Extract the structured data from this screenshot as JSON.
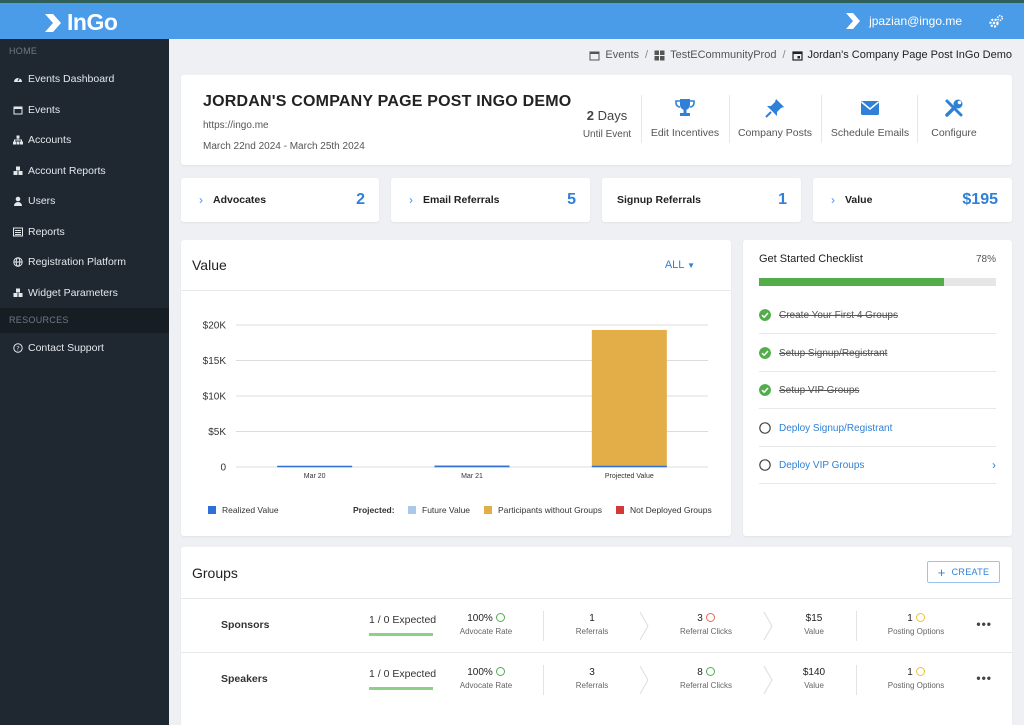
{
  "app": {
    "name": "InGo",
    "user_email": "jpazian@ingo.me"
  },
  "colors": {
    "topbar": "#4a9be8",
    "sidebar": "#1f2830",
    "accent": "#2f80d6",
    "success": "#52ad4a",
    "realized": "#2f6fd6",
    "future": "#a9c8ea",
    "participants": "#e3ad47",
    "not_deployed": "#d23a3a"
  },
  "sidebar": {
    "section_home": "HOME",
    "section_resources": "RESOURCES",
    "items": [
      {
        "label": "Events Dashboard",
        "icon": "dashboard-icon"
      },
      {
        "label": "Events",
        "icon": "calendar-icon"
      },
      {
        "label": "Accounts",
        "icon": "sitemap-icon"
      },
      {
        "label": "Account Reports",
        "icon": "cubes-icon"
      },
      {
        "label": "Users",
        "icon": "user-icon"
      },
      {
        "label": "Reports",
        "icon": "list-icon"
      },
      {
        "label": "Registration Platform",
        "icon": "globe-icon"
      },
      {
        "label": "Widget Parameters",
        "icon": "cubes-icon"
      }
    ],
    "resources": [
      {
        "label": "Contact Support",
        "icon": "question-circle-icon"
      }
    ]
  },
  "breadcrumb": {
    "events": "Events",
    "community": "TestECommunityProd",
    "current": "Jordan's Company Page Post InGo Demo"
  },
  "event": {
    "title": "JORDAN'S COMPANY PAGE POST INGO DEMO",
    "url": "https://ingo.me",
    "dates": "March 22nd 2024 - March 25th 2024",
    "days_num": "2",
    "days_word": "Days",
    "days_label": "Until Event",
    "actions": [
      {
        "label": "Edit Incentives",
        "icon": "trophy-icon"
      },
      {
        "label": "Company Posts",
        "icon": "pin-icon"
      },
      {
        "label": "Schedule Emails",
        "icon": "envelope-icon"
      },
      {
        "label": "Configure",
        "icon": "wrench-icon"
      }
    ]
  },
  "stats": [
    {
      "label": "Advocates",
      "value": "2"
    },
    {
      "label": "Email Referrals",
      "value": "5"
    },
    {
      "label": "Signup Referrals",
      "value": "1"
    },
    {
      "label": "Value",
      "value": "$195"
    }
  ],
  "value_panel": {
    "title": "Value",
    "filter": "ALL"
  },
  "chart_data": {
    "type": "bar",
    "categories": [
      "Mar 20",
      "Mar 21",
      "Projected Value"
    ],
    "ylim": [
      0,
      20000
    ],
    "yticks": [
      0,
      5000,
      10000,
      15000,
      20000
    ],
    "ytick_labels": [
      "0",
      "$5K",
      "$10K",
      "$15K",
      "$20K"
    ],
    "series": [
      {
        "name": "Realized Value",
        "values": [
          0,
          195,
          0
        ]
      },
      {
        "name": "Future Value",
        "values": [
          0,
          0,
          0
        ]
      },
      {
        "name": "Participants without Groups",
        "values": [
          0,
          0,
          19300
        ]
      },
      {
        "name": "Not Deployed Groups",
        "values": [
          0,
          0,
          0
        ]
      }
    ],
    "legend_projected_label": "Projected:",
    "grid": true
  },
  "checklist": {
    "title": "Get Started Checklist",
    "percent": "78%",
    "progress": 0.78,
    "items": [
      {
        "label": "Create Your First 4 Groups",
        "done": true
      },
      {
        "label": "Setup Signup/Registrant",
        "done": true
      },
      {
        "label": "Setup VIP Groups",
        "done": true
      },
      {
        "label": "Deploy Signup/Registrant",
        "done": false
      },
      {
        "label": "Deploy VIP Groups",
        "done": false
      }
    ]
  },
  "groups": {
    "title": "Groups",
    "create_label": "CREATE",
    "labels": {
      "advocate_rate": "Advocate Rate",
      "referrals": "Referrals",
      "referral_clicks": "Referral Clicks",
      "value": "Value",
      "posting_options": "Posting Options"
    },
    "rows": [
      {
        "name": "Sponsors",
        "expected": "1 / 0 Expected",
        "advocate_rate": "100%",
        "referrals": "1",
        "referral_clicks": "3",
        "value": "$15",
        "posting_options": "1"
      },
      {
        "name": "Speakers",
        "expected": "1 / 0 Expected",
        "advocate_rate": "100%",
        "referrals": "3",
        "referral_clicks": "8",
        "value": "$140",
        "posting_options": "1"
      }
    ]
  }
}
